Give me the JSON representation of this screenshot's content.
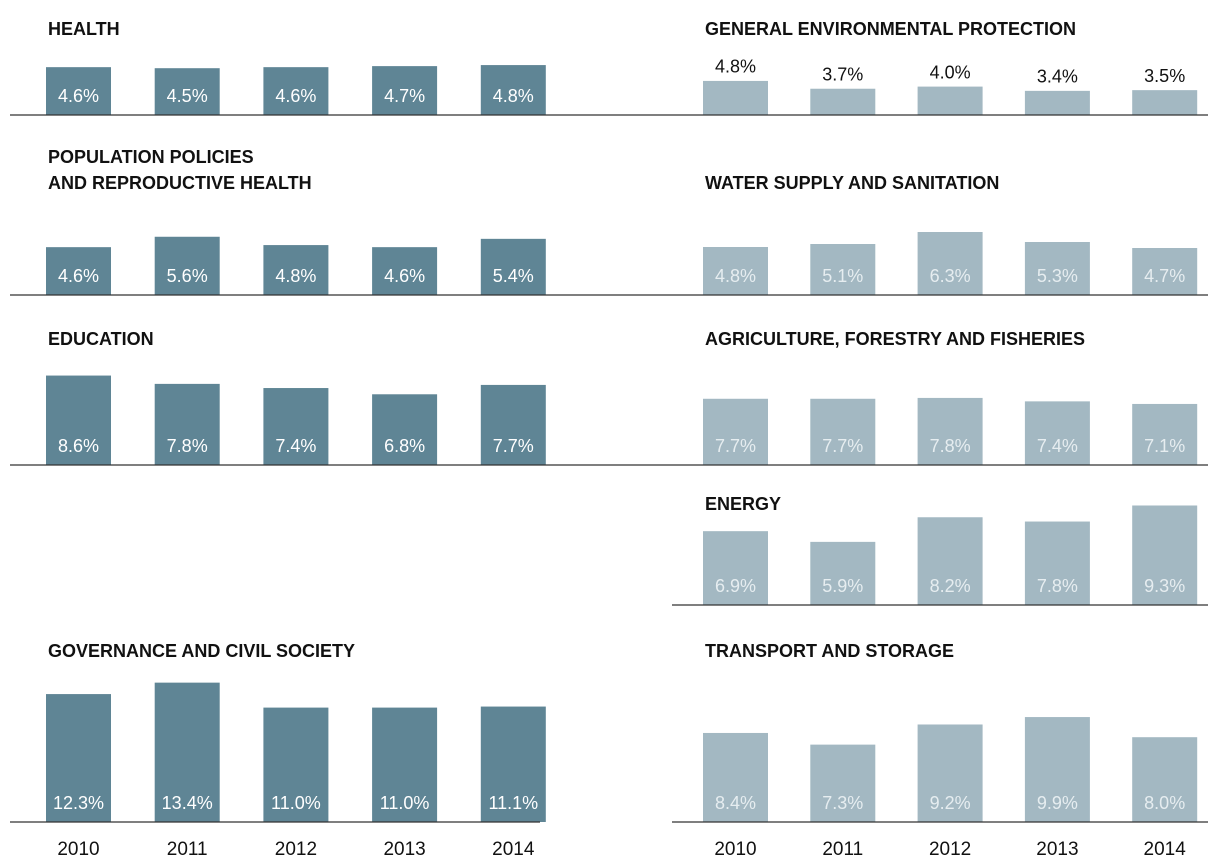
{
  "chart_data": [
    {
      "type": "bar",
      "title": [
        "HEALTH"
      ],
      "color": "#5f8595",
      "values": [
        4.6,
        4.5,
        4.6,
        4.7,
        4.8
      ],
      "value_labels": [
        "4.6%",
        "4.5%",
        "4.6%",
        "4.7%",
        "4.8%"
      ]
    },
    {
      "type": "bar",
      "title": [
        "POPULATION POLICIES",
        "AND REPRODUCTIVE HEALTH"
      ],
      "color": "#5f8595",
      "values": [
        4.6,
        5.6,
        4.8,
        4.6,
        5.4
      ],
      "value_labels": [
        "4.6%",
        "5.6%",
        "4.8%",
        "4.6%",
        "5.4%"
      ]
    },
    {
      "type": "bar",
      "title": [
        "EDUCATION"
      ],
      "color": "#5f8595",
      "values": [
        8.6,
        7.8,
        7.4,
        6.8,
        7.7
      ],
      "value_labels": [
        "8.6%",
        "7.8%",
        "7.4%",
        "6.8%",
        "7.7%"
      ]
    },
    {
      "type": "bar",
      "title": [
        "GOVERNANCE AND CIVIL SOCIETY"
      ],
      "color": "#5f8595",
      "values": [
        12.3,
        13.4,
        11.0,
        11.0,
        11.1
      ],
      "value_labels": [
        "12.3%",
        "13.4%",
        "11.0%",
        "11.0%",
        "11.1%"
      ],
      "categories": [
        "2010",
        "2011",
        "2012",
        "2013",
        "2014"
      ]
    },
    {
      "type": "bar",
      "title": [
        "GENERAL ENVIRONMENTAL PROTECTION"
      ],
      "color": "#a3b8c2",
      "label_position": "above",
      "values": [
        4.8,
        3.7,
        4.0,
        3.4,
        3.5
      ],
      "value_labels": [
        "4.8%",
        "3.7%",
        "4.0%",
        "3.4%",
        "3.5%"
      ]
    },
    {
      "type": "bar",
      "title": [
        "WATER SUPPLY AND SANITATION"
      ],
      "color": "#a3b8c2",
      "values": [
        4.8,
        5.1,
        6.3,
        5.3,
        4.7
      ],
      "value_labels": [
        "4.8%",
        "5.1%",
        "6.3%",
        "5.3%",
        "4.7%"
      ]
    },
    {
      "type": "bar",
      "title": [
        "AGRICULTURE, FORESTRY AND FISHERIES"
      ],
      "color": "#a3b8c2",
      "values": [
        7.7,
        7.7,
        7.8,
        7.4,
        7.1
      ],
      "value_labels": [
        "7.7%",
        "7.7%",
        "7.8%",
        "7.4%",
        "7.1%"
      ]
    },
    {
      "type": "bar",
      "title": [
        "ENERGY"
      ],
      "color": "#a3b8c2",
      "values": [
        6.9,
        5.9,
        8.2,
        7.8,
        9.3
      ],
      "value_labels": [
        "6.9%",
        "5.9%",
        "8.2%",
        "7.8%",
        "9.3%"
      ]
    },
    {
      "type": "bar",
      "title": [
        "TRANSPORT AND STORAGE"
      ],
      "color": "#a3b8c2",
      "values": [
        8.4,
        7.3,
        9.2,
        9.9,
        8.0
      ],
      "value_labels": [
        "8.4%",
        "7.3%",
        "9.2%",
        "9.9%",
        "8.0%"
      ],
      "categories": [
        "2010",
        "2011",
        "2012",
        "2013",
        "2014"
      ]
    }
  ]
}
